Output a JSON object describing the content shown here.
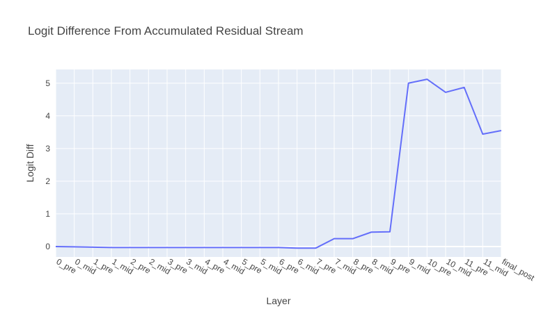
{
  "chart_data": {
    "type": "line",
    "title": "Logit Difference From Accumulated Residual Stream",
    "xlabel": "Layer",
    "ylabel": "Logit Diff",
    "categories": [
      "0_pre",
      "0_mid",
      "1_pre",
      "1_mid",
      "2_pre",
      "2_mid",
      "3_pre",
      "3_mid",
      "4_pre",
      "4_mid",
      "5_pre",
      "5_mid",
      "6_pre",
      "6_mid",
      "7_pre",
      "7_mid",
      "8_pre",
      "8_mid",
      "9_pre",
      "9_mid",
      "10_pre",
      "10_mid",
      "11_pre",
      "11_mid",
      "final_post"
    ],
    "yticks": [
      0,
      1,
      2,
      3,
      4,
      5
    ],
    "ylim": [
      -0.32,
      5.42
    ],
    "grid": true,
    "series": [
      {
        "values": [
          0.0,
          -0.01,
          -0.02,
          -0.03,
          -0.03,
          -0.03,
          -0.03,
          -0.03,
          -0.03,
          -0.03,
          -0.03,
          -0.03,
          -0.03,
          -0.05,
          -0.05,
          0.24,
          0.24,
          0.44,
          0.45,
          5.0,
          5.12,
          4.72,
          4.87,
          3.44,
          3.55
        ],
        "color": "#636efa"
      }
    ],
    "colors": {
      "plot_bg": "#e5ecf6",
      "grid": "#ffffff",
      "text": "#444444",
      "title": "#444444"
    }
  }
}
